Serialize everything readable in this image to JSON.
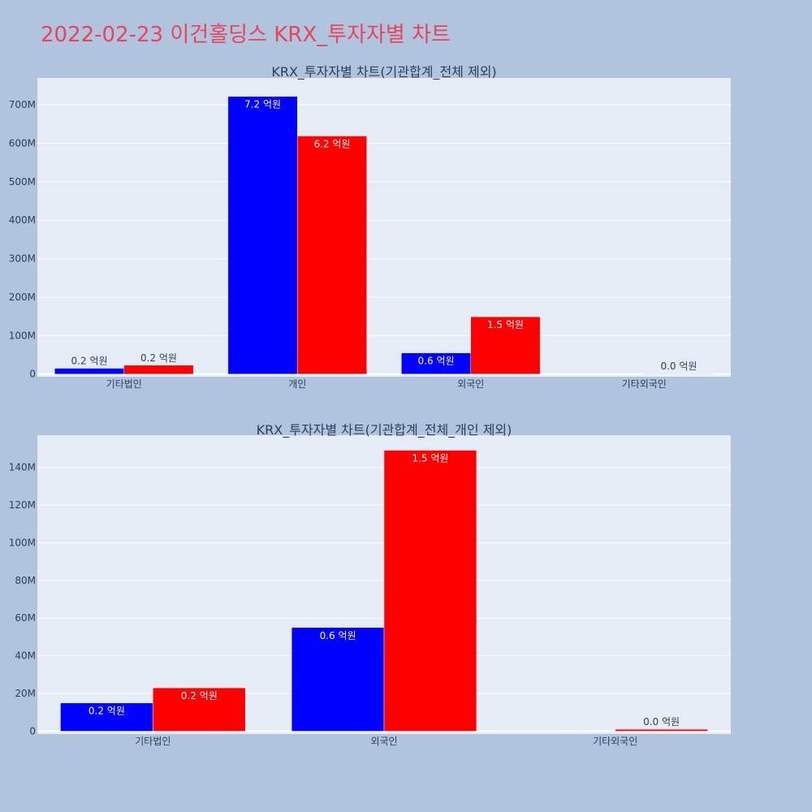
{
  "page": {
    "title": "2022-02-23 이건홀딩스 KRX_투자자별 차트",
    "title_color": "#e8445a",
    "background": "#b0c4de",
    "plot_background": "#e5ecf6"
  },
  "chart_data": [
    {
      "type": "bar",
      "title": "KRX_투자자별 차트(기관합계_전체 제외)",
      "categories": [
        "기타법인",
        "개인",
        "외국인",
        "기타외국인"
      ],
      "series": [
        {
          "color": "#0000ff",
          "values": [
            15000000,
            722000000,
            55000000,
            0
          ],
          "labels": [
            "0.2 억원",
            "7.2 억원",
            "0.6 억원",
            ""
          ]
        },
        {
          "color": "#ff0000",
          "values": [
            23000000,
            619000000,
            149000000,
            1000000
          ],
          "labels": [
            "0.2 억원",
            "6.2 억원",
            "1.5 억원",
            "0.0 억원"
          ]
        }
      ],
      "ylim": [
        -7000000,
        770000000
      ],
      "yticks": [
        0,
        100000000,
        200000000,
        300000000,
        400000000,
        500000000,
        600000000,
        700000000
      ],
      "ytick_labels": [
        "0",
        "100M",
        "200M",
        "300M",
        "400M",
        "500M",
        "600M",
        "700M"
      ],
      "grid": true,
      "legend": "none"
    },
    {
      "type": "bar",
      "title": "KRX_투자자별 차트(기관합계_전체_개인 제외)",
      "categories": [
        "기타법인",
        "외국인",
        "기타외국인"
      ],
      "series": [
        {
          "color": "#0000ff",
          "values": [
            15000000,
            55000000,
            0
          ],
          "labels": [
            "0.2 억원",
            "0.6 억원",
            ""
          ]
        },
        {
          "color": "#ff0000",
          "values": [
            23000000,
            149000000,
            1000000
          ],
          "labels": [
            "0.2 억원",
            "1.5 억원",
            "0.0 억원"
          ]
        }
      ],
      "ylim": [
        -1500000,
        157000000
      ],
      "yticks": [
        0,
        20000000,
        40000000,
        60000000,
        80000000,
        100000000,
        120000000,
        140000000
      ],
      "ytick_labels": [
        "0",
        "20M",
        "40M",
        "60M",
        "80M",
        "100M",
        "120M",
        "140M"
      ],
      "grid": true,
      "legend": "none"
    }
  ]
}
